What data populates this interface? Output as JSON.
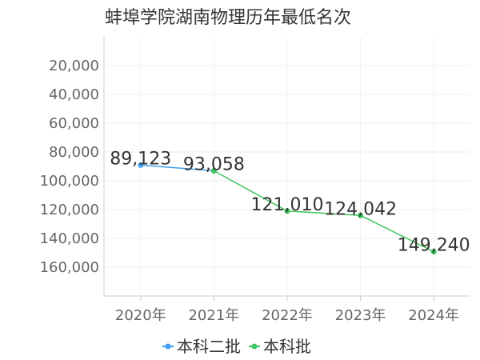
{
  "chart_data": {
    "type": "line",
    "title": "蚌埠学院湖南物理历年最低名次",
    "categories": [
      "2020年",
      "2021年",
      "2022年",
      "2023年",
      "2024年"
    ],
    "series": [
      {
        "name": "本科二批",
        "color": "#3fa1f0",
        "values": [
          89123,
          93058,
          null,
          null,
          null
        ]
      },
      {
        "name": "本科批",
        "color": "#3ec45e",
        "values": [
          null,
          93058,
          121010,
          124042,
          149240
        ]
      }
    ],
    "data_labels": [
      "89,123",
      "93,058",
      "121,010",
      "124,042",
      "149,240"
    ],
    "y_ticks": [
      "20,000",
      "40,000",
      "60,000",
      "80,000",
      "100,000",
      "120,000",
      "140,000",
      "160,000"
    ],
    "y_tick_values": [
      20000,
      40000,
      60000,
      80000,
      100000,
      120000,
      140000,
      160000
    ],
    "ylim": [
      0,
      180000
    ],
    "y_inverted": true,
    "grid": true,
    "legend_position": "bottom"
  }
}
